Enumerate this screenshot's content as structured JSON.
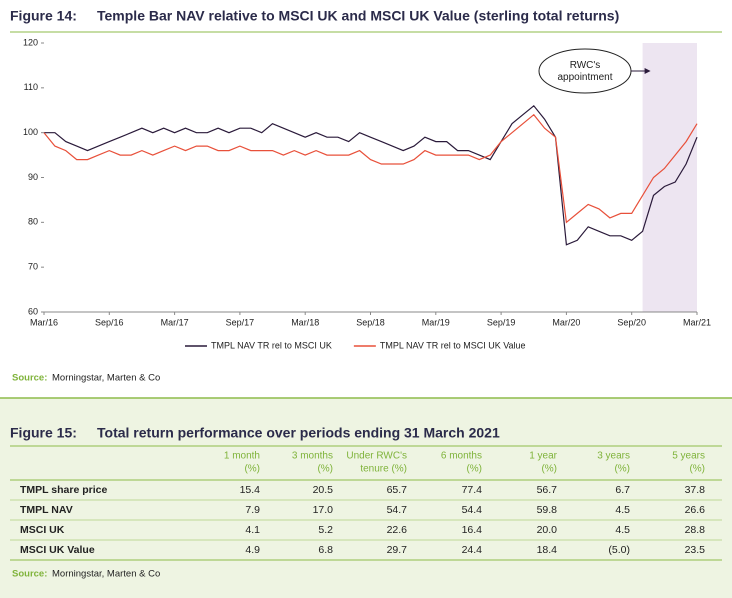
{
  "figure14": {
    "label": "Figure 14:",
    "title": "Temple Bar NAV relative to MSCI UK and MSCI UK Value (sterling total returns)"
  },
  "chart_data": {
    "type": "line",
    "categories": [
      "Mar/16",
      null,
      null,
      null,
      null,
      null,
      "Sep/16",
      null,
      null,
      null,
      null,
      null,
      "Mar/17",
      null,
      null,
      null,
      null,
      null,
      "Sep/17",
      null,
      null,
      null,
      null,
      null,
      "Mar/18",
      null,
      null,
      null,
      null,
      null,
      "Sep/18",
      null,
      null,
      null,
      null,
      null,
      "Mar/19",
      null,
      null,
      null,
      null,
      null,
      "Sep/19",
      null,
      null,
      null,
      null,
      null,
      "Mar/20",
      null,
      null,
      null,
      null,
      null,
      "Sep/20",
      null,
      null,
      null,
      null,
      null,
      "Mar/21"
    ],
    "series": [
      {
        "name": "TMPL NAV TR rel to MSCI UK",
        "color": "#2a1a3a",
        "values": [
          100,
          100,
          98,
          97,
          96,
          97,
          98,
          99,
          100,
          101,
          100,
          101,
          100,
          101,
          100,
          100,
          101,
          100,
          101,
          101,
          100,
          102,
          101,
          100,
          99,
          100,
          99,
          99,
          98,
          100,
          99,
          98,
          97,
          96,
          97,
          99,
          98,
          98,
          96,
          96,
          95,
          94,
          98,
          102,
          104,
          106,
          103,
          99,
          75,
          76,
          79,
          78,
          77,
          77,
          76,
          78,
          86,
          88,
          89,
          93,
          99
        ]
      },
      {
        "name": "TMPL NAV TR rel to MSCI UK Value",
        "color": "#e8503a",
        "values": [
          100,
          97,
          96,
          94,
          94,
          95,
          96,
          95,
          95,
          96,
          95,
          96,
          97,
          96,
          97,
          97,
          96,
          96,
          97,
          96,
          96,
          96,
          95,
          96,
          95,
          96,
          95,
          95,
          95,
          96,
          94,
          93,
          93,
          93,
          94,
          96,
          95,
          95,
          95,
          95,
          94,
          95,
          98,
          100,
          102,
          104,
          101,
          99,
          80,
          82,
          84,
          83,
          81,
          82,
          82,
          86,
          90,
          92,
          95,
          98,
          102
        ]
      }
    ],
    "ylim": [
      60,
      120
    ],
    "yticks": [
      60,
      70,
      80,
      90,
      100,
      110,
      120
    ],
    "highlight": {
      "start": 55,
      "end": 60,
      "color": "#ede5f1",
      "annotation": "RWC's appointment"
    }
  },
  "source14": {
    "label": "Source:",
    "text": "Morningstar, Marten & Co"
  },
  "figure15": {
    "label": "Figure 15:",
    "title": "Total return performance over periods ending 31 March 2021"
  },
  "table": {
    "header": [
      [
        "1 month",
        "(%)"
      ],
      [
        "3 months",
        "(%)"
      ],
      [
        "Under RWC's",
        "tenure (%)"
      ],
      [
        "6 months",
        "(%)"
      ],
      [
        "1 year",
        "(%)"
      ],
      [
        "3 years",
        "(%)"
      ],
      [
        "5 years",
        "(%)"
      ]
    ],
    "rows": [
      [
        "TMPL share price",
        "15.4",
        "20.5",
        "65.7",
        "77.4",
        "56.7",
        "6.7",
        "37.8"
      ],
      [
        "TMPL NAV",
        "7.9",
        "17.0",
        "54.7",
        "54.4",
        "59.8",
        "4.5",
        "26.6"
      ],
      [
        "MSCI UK",
        "4.1",
        "5.2",
        "22.6",
        "16.4",
        "20.0",
        "4.5",
        "28.8"
      ],
      [
        "MSCI UK Value",
        "4.9",
        "6.8",
        "29.7",
        "24.4",
        "18.4",
        "(5.0)",
        "23.5"
      ]
    ]
  },
  "source15": {
    "label": "Source:",
    "text": "Morningstar, Marten & Co"
  }
}
